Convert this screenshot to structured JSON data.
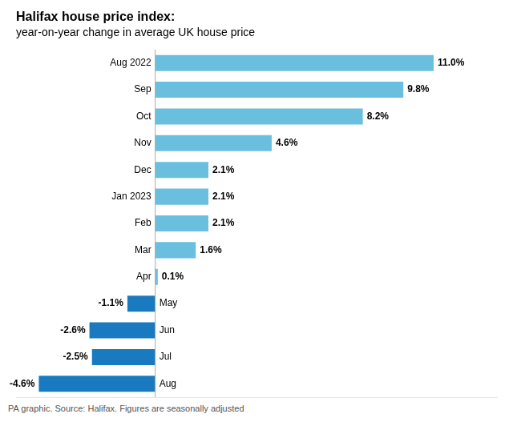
{
  "chart_data": {
    "type": "bar",
    "orientation": "horizontal",
    "title": "Halifax house price index:",
    "subtitle": "year-on-year change in average UK house price",
    "annotations": [
      "PA graphic. Source: Halifax. Figures are seasonally adjusted"
    ],
    "categories": [
      "Aug 2022",
      "Sep",
      "Oct",
      "Nov",
      "Dec",
      "Jan 2023",
      "Feb",
      "Mar",
      "Apr",
      "May",
      "Jun",
      "Jul",
      "Aug"
    ],
    "values": [
      11.0,
      9.8,
      8.2,
      4.6,
      2.1,
      2.1,
      2.1,
      1.6,
      0.1,
      -1.1,
      -2.6,
      -2.5,
      -4.6
    ],
    "value_labels": [
      "11.0%",
      "9.8%",
      "8.2%",
      "4.6%",
      "2.1%",
      "2.1%",
      "2.1%",
      "1.6%",
      "0.1%",
      "-1.1%",
      "-2.6%",
      "-2.5%",
      "-4.6%"
    ],
    "colors": [
      "#6abfde",
      "#6abfde",
      "#6abfde",
      "#6abfde",
      "#6abfde",
      "#6abfde",
      "#6abfde",
      "#6abfde",
      "#6abfde",
      "#1a7abf",
      "#1a7abf",
      "#1a7abf",
      "#1a7abf"
    ],
    "xlim": [
      -5.5,
      13.5
    ],
    "data_labels": true,
    "tick_labels": false,
    "grid": false
  }
}
